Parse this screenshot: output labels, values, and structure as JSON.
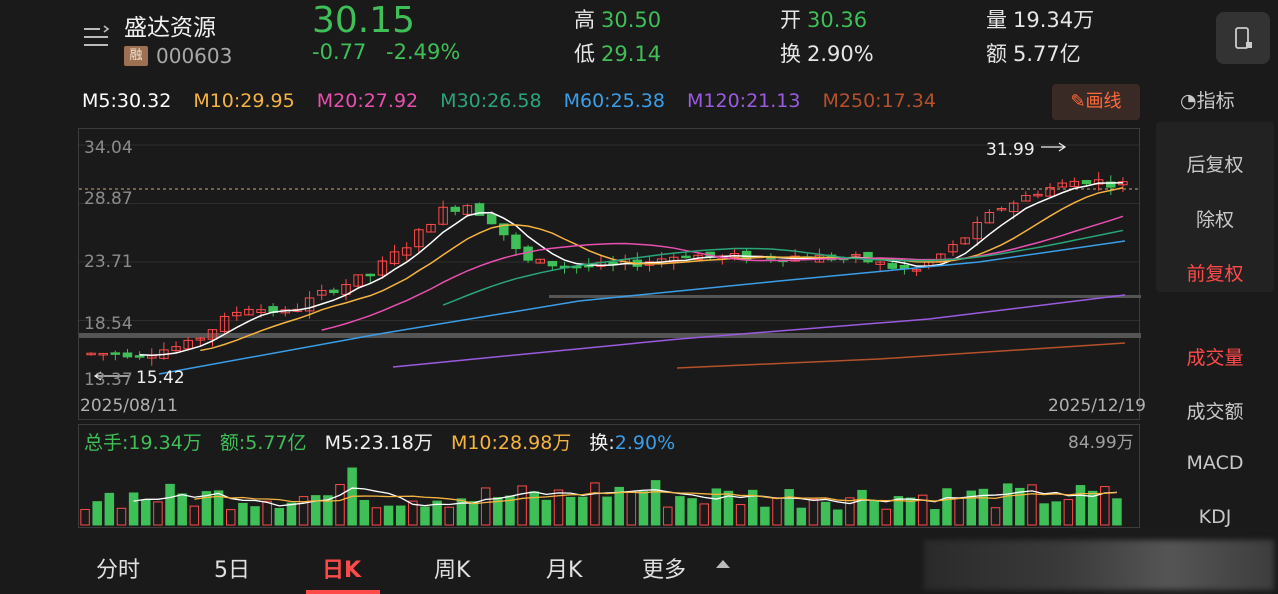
{
  "header": {
    "name": "盛达资源",
    "badge": "融",
    "code": "000603",
    "price": "30.15",
    "change": "-0.77",
    "change_pct": "-2.49%",
    "high_label": "高",
    "high": "30.50",
    "low_label": "低",
    "low": "29.14",
    "open_label": "开",
    "open": "30.36",
    "turnover_label": "换",
    "turnover": "2.90%",
    "volume_label": "量",
    "volume": "19.34万",
    "amount_label": "额",
    "amount": "5.77亿"
  },
  "ma": {
    "m5": "M5:30.32",
    "m10": "M10:29.95",
    "m20": "M20:27.92",
    "m30": "M30:26.58",
    "m60": "M60:25.38",
    "m120": "M120:21.13",
    "m250": "M250:17.34"
  },
  "draw_button": "画线",
  "chart": {
    "y_labels": [
      "34.04",
      "28.87",
      "23.71",
      "18.54",
      "13.37"
    ],
    "start_date": "2025/08/11",
    "end_date": "2025/12/19",
    "max_annotation": "31.99",
    "min_annotation": "15.42"
  },
  "volume": {
    "total": "总手:19.34万",
    "amount": "额:5.77亿",
    "m5": "M5:23.18万",
    "m10": "M10:28.98万",
    "turnover_label": "换:",
    "turnover": "2.90%",
    "max": "84.99万"
  },
  "side": {
    "indicator": "指标",
    "items": [
      "后复权",
      "除权",
      "前复权"
    ],
    "lower_items": [
      "成交量",
      "成交额",
      "MACD",
      "KDJ"
    ]
  },
  "tabs": [
    "分时",
    "5日",
    "日K",
    "周K",
    "月K",
    "更多"
  ],
  "colors": {
    "up": "#ff4a4a",
    "down": "#3fbf57",
    "m5": "#ffffff",
    "m10": "#f5b340",
    "m20": "#e84fb0",
    "m30": "#2aa57a",
    "m60": "#3a9ee8",
    "m120": "#9b5be0",
    "m250": "#b5512a"
  },
  "chart_data": {
    "type": "candlestick",
    "y_ticks": [
      34.04,
      28.87,
      23.71,
      18.54,
      13.37
    ],
    "ylim": [
      13.37,
      34.04
    ],
    "x_range": [
      "2025/08/11",
      "2025/12/19"
    ],
    "series": [
      {
        "name": "M5",
        "last": 30.32
      },
      {
        "name": "M10",
        "last": 29.95
      },
      {
        "name": "M20",
        "last": 27.92
      },
      {
        "name": "M30",
        "last": 26.58
      },
      {
        "name": "M60",
        "last": 25.38
      },
      {
        "name": "M120",
        "last": 21.13
      },
      {
        "name": "M250",
        "last": 17.34
      }
    ],
    "max_annotation": 31.99,
    "min_annotation": 15.42,
    "last_close": 30.15
  }
}
